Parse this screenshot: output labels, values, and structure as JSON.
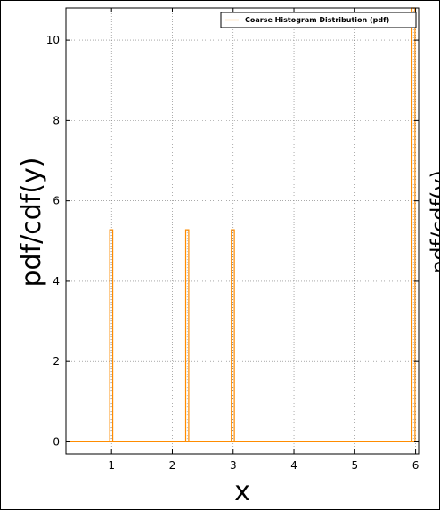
{
  "chart_data": {
    "type": "line",
    "title": "",
    "xlabel": "x",
    "ylabel": "pdf/cdf(y)",
    "right_ylabel_partial": "pdf/cdf(y)",
    "xlim": [
      0.25,
      6.05
    ],
    "ylim": [
      -0.3,
      10.8
    ],
    "x_ticks": [
      1,
      2,
      3,
      4,
      5,
      6
    ],
    "y_ticks": [
      0,
      2,
      4,
      6,
      8,
      10
    ],
    "grid": true,
    "legend_position": "top-right",
    "series": [
      {
        "name": "Coarse Histogram Distribution (pdf)",
        "color": "#ff8c00",
        "bars": [
          {
            "x0": 0.97,
            "x1": 1.02,
            "y": 5.28
          },
          {
            "x0": 2.22,
            "x1": 2.27,
            "y": 5.28
          },
          {
            "x0": 2.97,
            "x1": 3.02,
            "y": 5.28
          },
          {
            "x0": 5.94,
            "x1": 5.99,
            "y": 10.8
          }
        ],
        "baseline": 0
      }
    ]
  }
}
